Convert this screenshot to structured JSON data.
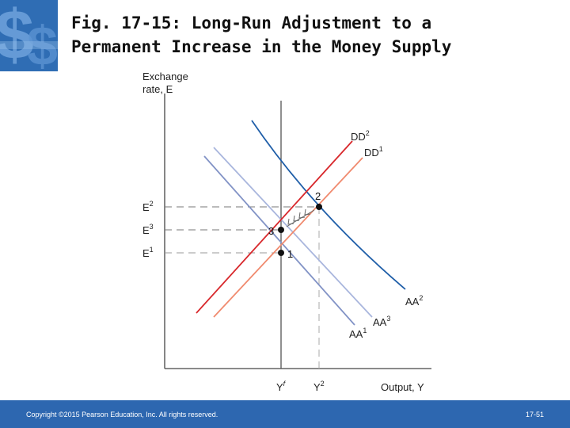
{
  "title": {
    "line1": "Fig. 17-15: Long-Run Adjustment to a",
    "line2": "Permanent Increase in the Money Supply"
  },
  "diagram": {
    "y_axis_label": {
      "line1": "Exchange",
      "line2": "rate, E"
    },
    "x_axis_label": "Output, Y",
    "e_labels": [
      {
        "base": "E",
        "sup": "2"
      },
      {
        "base": "E",
        "sup": "3"
      },
      {
        "base": "E",
        "sup": "1"
      }
    ],
    "y_labels": [
      {
        "base": "Y",
        "sup": "f"
      },
      {
        "base": "Y",
        "sup": "2"
      }
    ],
    "curves": {
      "DD2": {
        "base": "DD",
        "sup": "2",
        "color": "#d8282c"
      },
      "DD1": {
        "base": "DD",
        "sup": "1",
        "color": "#f08a6e"
      },
      "AA2": {
        "base": "AA",
        "sup": "2",
        "color": "#1f5ea8"
      },
      "AA3": {
        "base": "AA",
        "sup": "3",
        "color": "#a9b6dd"
      },
      "AA1": {
        "base": "AA",
        "sup": "1",
        "color": "#8293c6"
      }
    },
    "points": [
      "2",
      "3",
      "1"
    ]
  },
  "footer": {
    "copyright": "Copyright ©2015 Pearson Education, Inc. All rights reserved.",
    "slide_number": "17-51"
  },
  "colors": {
    "footer_bg": "#2d67b0",
    "logo_bg": "#2f6db4"
  }
}
